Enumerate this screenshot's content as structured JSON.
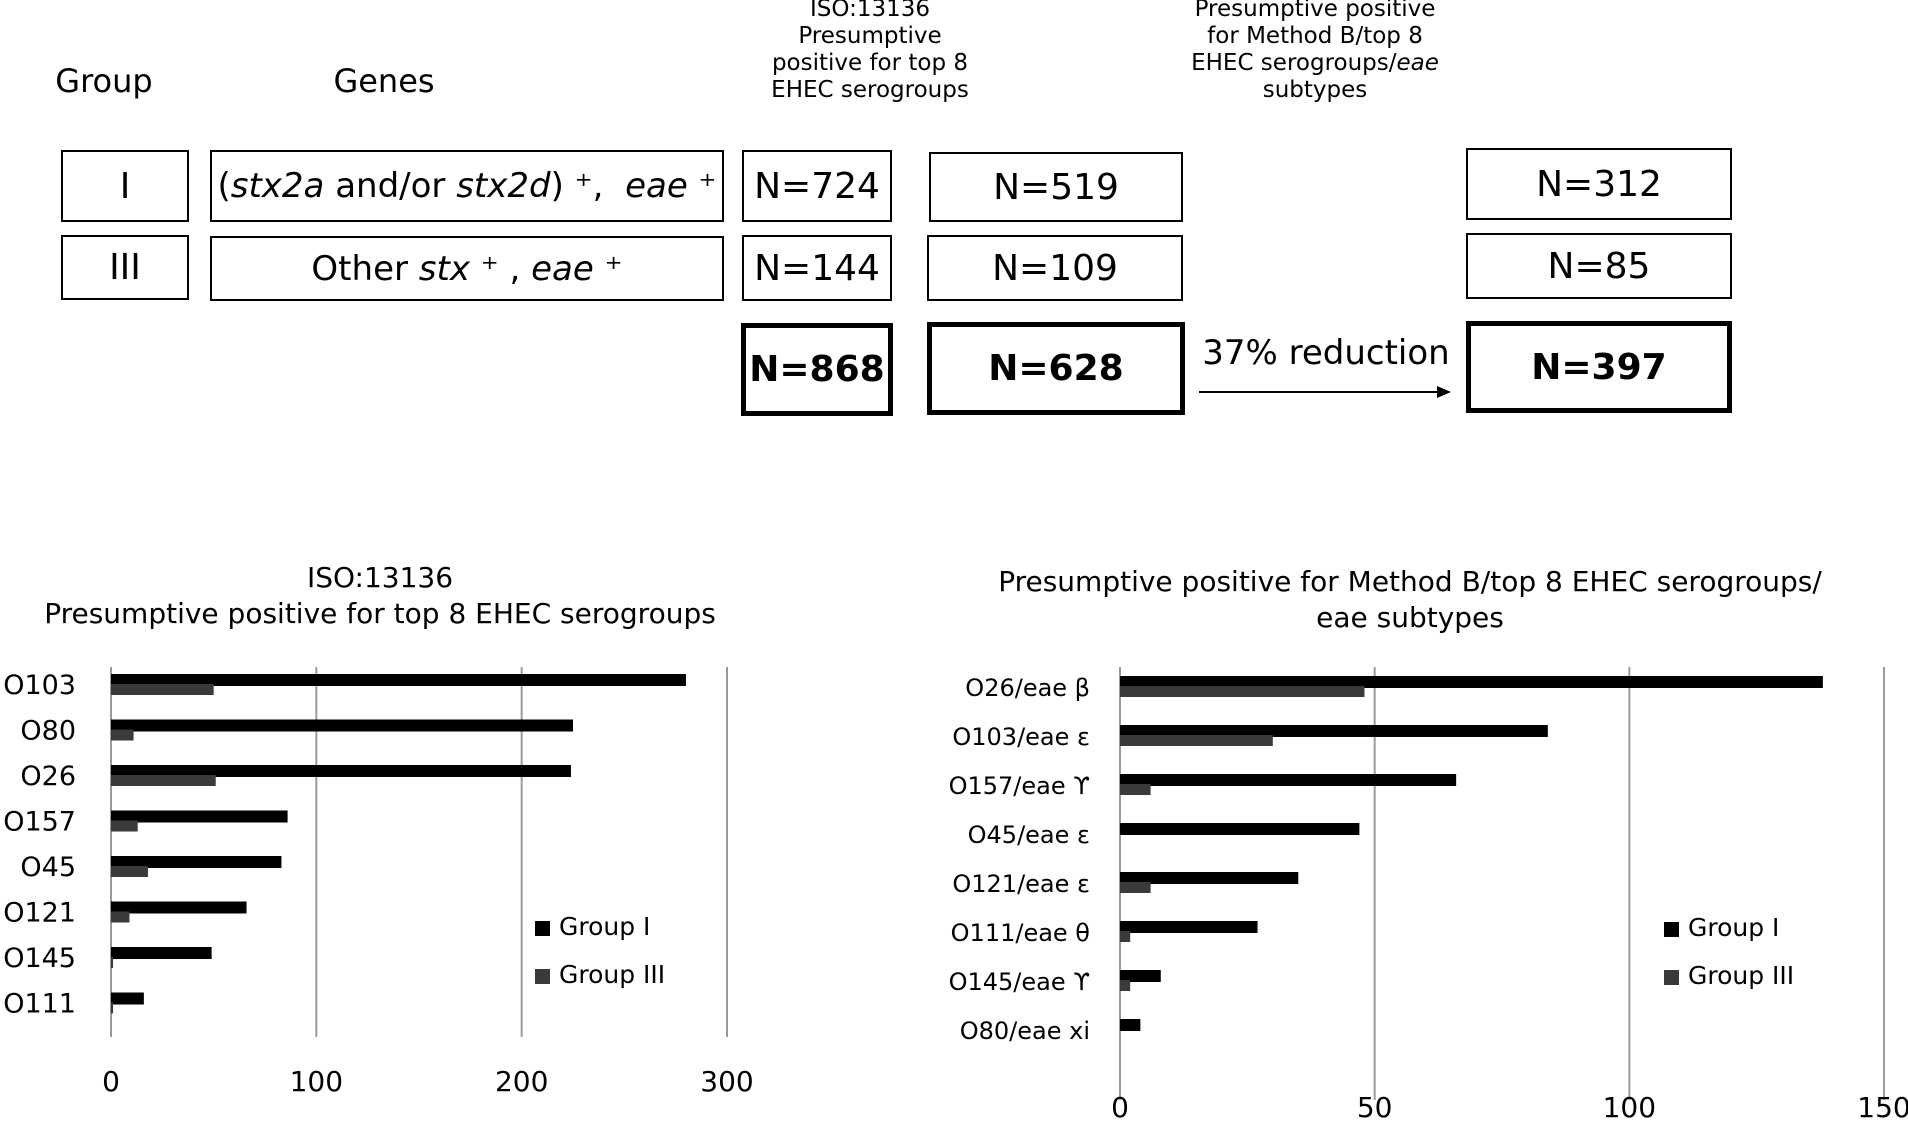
{
  "table": {
    "headers": {
      "group": "Group",
      "genes": "Genes",
      "iso": [
        "ISO:13136",
        "Presumptive",
        "positive for top 8",
        "EHEC serogroups"
      ],
      "method_b": [
        "Presumptive positive",
        "for Method B/top 8",
        "EHEC serogroups/",
        "eae",
        "subtypes"
      ]
    },
    "rows": [
      {
        "group": "I",
        "genes": {
          "open": "(",
          "g1": "stx2a",
          "mid": " and/or ",
          "g2": "stx2d",
          "close": ") ⁺,  ",
          "g3": "eae",
          "sup": " ⁺"
        },
        "n_total": "N=724",
        "n_iso": "N=519",
        "n_methodb": "N=312"
      },
      {
        "group": "III",
        "genes": {
          "pre": "Other ",
          "g1": "stx",
          "mid": " ⁺ , ",
          "g2": "eae",
          "sup": " ⁺"
        },
        "n_total": "N=144",
        "n_iso": "N=109",
        "n_methodb": "N=85"
      }
    ],
    "totals": {
      "n_total": "N=868",
      "n_iso": "N=628",
      "n_methodb": "N=397"
    },
    "reduction": "37% reduction"
  },
  "chart_data": [
    {
      "type": "bar",
      "orientation": "horizontal",
      "title": [
        "ISO:13136",
        "Presumptive positive for top 8 EHEC serogroups"
      ],
      "categories": [
        "O103",
        "O80",
        "O26",
        "O157",
        "O45",
        "O121",
        "O145",
        "O111"
      ],
      "series": [
        {
          "name": "Group I",
          "color": "#000000",
          "values": [
            280,
            225,
            224,
            86,
            83,
            66,
            49,
            16
          ]
        },
        {
          "name": "Group III",
          "color": "#3a3a3a",
          "values": [
            50,
            11,
            51,
            13,
            18,
            9,
            1,
            1
          ]
        }
      ],
      "xlim": [
        0,
        300
      ],
      "xticks": [
        "0",
        "100",
        "200",
        "300"
      ],
      "grid": true,
      "legend": "bottom-right"
    },
    {
      "type": "bar",
      "orientation": "horizontal",
      "title": [
        "Presumptive positive for Method B/top 8 EHEC serogroups/",
        "eae subtypes"
      ],
      "categories": [
        "O26/eae β",
        "O103/eae ε",
        "O157/eae ϒ",
        "O45/eae ε",
        "O121/eae ε",
        "O111/eae θ",
        "O145/eae ϒ",
        "O80/eae xi"
      ],
      "series": [
        {
          "name": "Group I",
          "color": "#000000",
          "values": [
            138,
            84,
            66,
            47,
            35,
            27,
            8,
            4
          ]
        },
        {
          "name": "Group III",
          "color": "#3a3a3a",
          "values": [
            48,
            30,
            6,
            0,
            6,
            2,
            2,
            0
          ]
        }
      ],
      "xlim": [
        0,
        150
      ],
      "xticks": [
        "0",
        "50",
        "100",
        "150"
      ],
      "grid": true,
      "legend": "bottom-right"
    }
  ]
}
